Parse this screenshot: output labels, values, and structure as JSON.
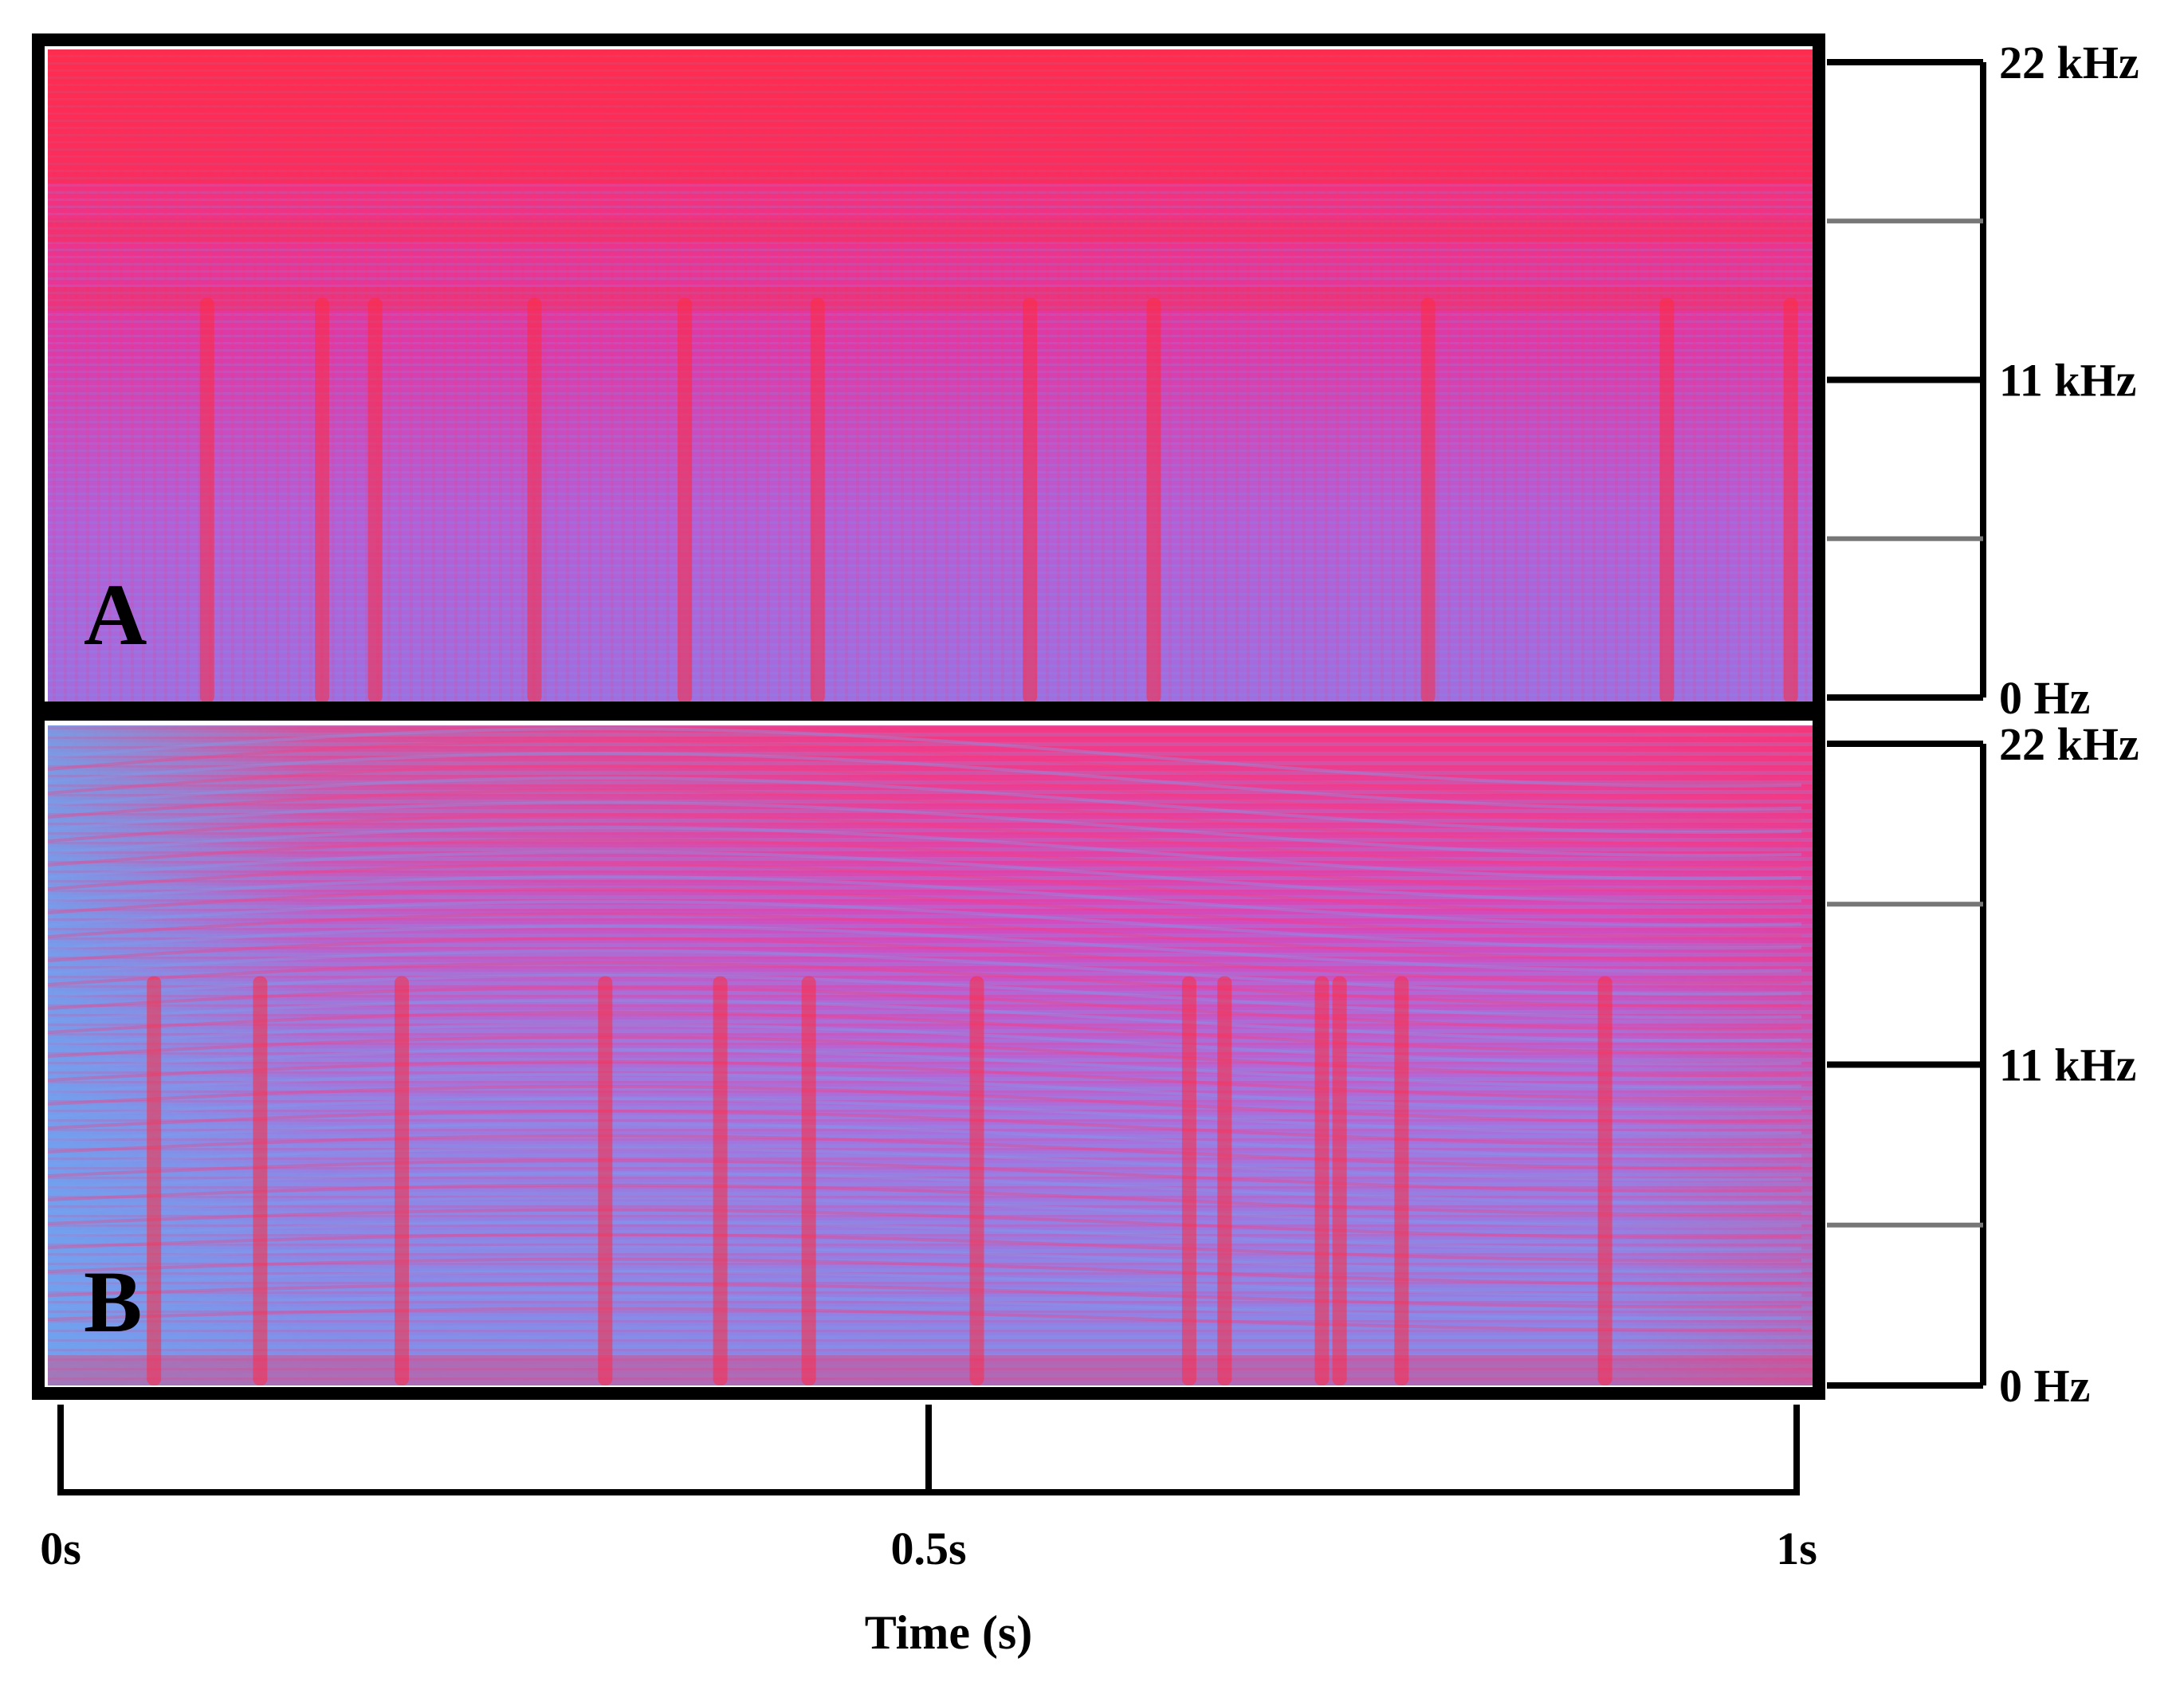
{
  "chart_data": [
    {
      "type": "heatmap",
      "panel_label": "A",
      "xlim": [
        0,
        1
      ],
      "ylim": [
        0,
        22
      ],
      "y_unit": "kHz",
      "y_ticks": [
        {
          "value": 0,
          "label": "0 Hz",
          "major": true
        },
        {
          "value": 5.5,
          "label": "",
          "major": false
        },
        {
          "value": 11,
          "label": "11 kHz",
          "major": true
        },
        {
          "value": 16.5,
          "label": "",
          "major": false
        },
        {
          "value": 22,
          "label": "22 kHz",
          "major": true
        }
      ],
      "colors": {
        "low": "#5ea0f0",
        "mid": "#d23ee0",
        "high": "#ff2a3c"
      },
      "high_energy_bands_khz": [
        [
          17.5,
          22
        ],
        [
          15.5,
          16.3
        ],
        [
          13.2,
          14.0
        ]
      ],
      "vertical_events_time_s": [
        0.09,
        0.155,
        0.185,
        0.275,
        0.36,
        0.435,
        0.555,
        0.625,
        0.78,
        0.915,
        0.985
      ]
    },
    {
      "type": "heatmap",
      "panel_label": "B",
      "xlim": [
        0,
        1
      ],
      "ylim": [
        0,
        22
      ],
      "y_unit": "kHz",
      "y_ticks": [
        {
          "value": 0,
          "label": "0 Hz",
          "major": true
        },
        {
          "value": 5.5,
          "label": "",
          "major": false
        },
        {
          "value": 11,
          "label": "11 kHz",
          "major": true
        },
        {
          "value": 16.5,
          "label": "",
          "major": false
        },
        {
          "value": 22,
          "label": "22 kHz",
          "major": true
        }
      ],
      "colors": {
        "low": "#5ea0f0",
        "mid": "#d23ee0",
        "high": "#ff2a3c"
      },
      "high_energy_bands_khz": [
        [
          17,
          22
        ]
      ],
      "vertical_events_time_s": [
        0.06,
        0.12,
        0.2,
        0.315,
        0.38,
        0.43,
        0.525,
        0.645,
        0.665,
        0.72,
        0.73,
        0.765,
        0.88
      ]
    }
  ],
  "x_axis": {
    "label": "Time (s)",
    "xlim": [
      0,
      1
    ],
    "ticks": [
      {
        "value": 0,
        "label": "0s"
      },
      {
        "value": 0.5,
        "label": "0.5s"
      },
      {
        "value": 1,
        "label": "1s"
      }
    ]
  }
}
